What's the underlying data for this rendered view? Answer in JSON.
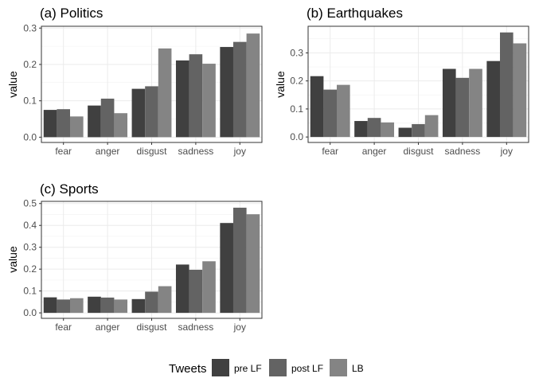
{
  "chart_data": [
    {
      "type": "bar",
      "title": "(a) Politics",
      "xlabel": "",
      "ylabel": "value",
      "categories": [
        "fear",
        "anger",
        "disgust",
        "sadness",
        "joy"
      ],
      "ylim": [
        -0.0145,
        0.305
      ],
      "yticks": [
        0.0,
        0.1,
        0.2,
        0.3
      ],
      "ytick_labels": [
        "0.0",
        "0.1",
        "0.2",
        "0.3"
      ],
      "grid": true,
      "series": [
        {
          "name": "pre LF",
          "values": [
            0.075,
            0.087,
            0.133,
            0.211,
            0.248
          ]
        },
        {
          "name": "post LF",
          "values": [
            0.077,
            0.106,
            0.14,
            0.228,
            0.262
          ]
        },
        {
          "name": "LB",
          "values": [
            0.057,
            0.066,
            0.244,
            0.202,
            0.285
          ]
        }
      ]
    },
    {
      "type": "bar",
      "title": "(b) Earthquakes",
      "xlabel": "",
      "ylabel": "value",
      "categories": [
        "fear",
        "anger",
        "disgust",
        "sadness",
        "joy"
      ],
      "ylim": [
        -0.0195,
        0.395
      ],
      "yticks": [
        0.0,
        0.1,
        0.2,
        0.3
      ],
      "ytick_labels": [
        "0.0",
        "0.1",
        "0.2",
        "0.3"
      ],
      "grid": true,
      "series": [
        {
          "name": "pre LF",
          "values": [
            0.217,
            0.057,
            0.033,
            0.243,
            0.271
          ]
        },
        {
          "name": "post LF",
          "values": [
            0.169,
            0.068,
            0.046,
            0.211,
            0.373
          ]
        },
        {
          "name": "LB",
          "values": [
            0.186,
            0.052,
            0.078,
            0.243,
            0.334
          ]
        }
      ]
    },
    {
      "type": "bar",
      "title": "(c) Sports",
      "xlabel": "",
      "ylabel": "value",
      "categories": [
        "fear",
        "anger",
        "disgust",
        "sadness",
        "joy"
      ],
      "ylim": [
        -0.025,
        0.51
      ],
      "yticks": [
        0.0,
        0.1,
        0.2,
        0.3,
        0.4,
        0.5
      ],
      "ytick_labels": [
        "0.0",
        "0.1",
        "0.2",
        "0.3",
        "0.4",
        "0.5"
      ],
      "grid": true,
      "series": [
        {
          "name": "pre LF",
          "values": [
            0.071,
            0.074,
            0.063,
            0.221,
            0.411
          ]
        },
        {
          "name": "post LF",
          "values": [
            0.061,
            0.07,
            0.097,
            0.197,
            0.481
          ]
        },
        {
          "name": "LB",
          "values": [
            0.067,
            0.061,
            0.122,
            0.236,
            0.451
          ]
        }
      ]
    }
  ],
  "legend": {
    "title": "Tweets",
    "position": "bottom",
    "items": [
      {
        "label": "pre LF",
        "color": "#404040"
      },
      {
        "label": "post LF",
        "color": "#636363"
      },
      {
        "label": "LB",
        "color": "#848484"
      }
    ]
  },
  "colors": {
    "series": [
      "#404040",
      "#636363",
      "#848484"
    ],
    "grid": "#ebebeb",
    "panel_border": "#333333"
  }
}
